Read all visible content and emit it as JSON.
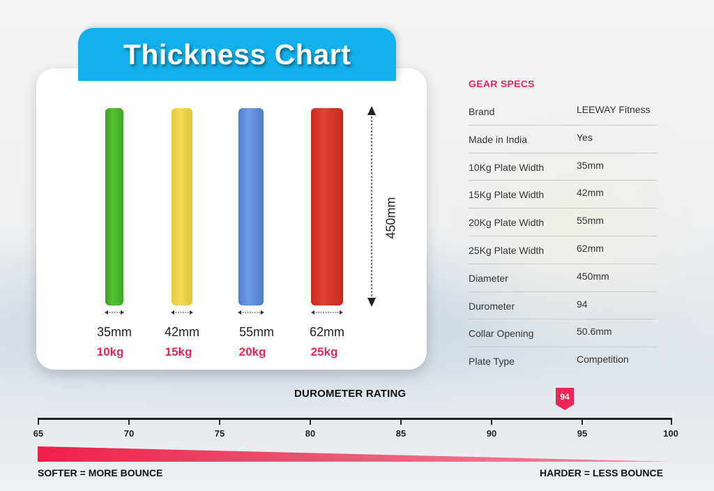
{
  "title": "Thickness Chart",
  "plates": [
    {
      "thickness": "35mm",
      "weight": "10kg",
      "color": "#4cb52c"
    },
    {
      "thickness": "42mm",
      "weight": "15kg",
      "color": "#f0d64f"
    },
    {
      "thickness": "55mm",
      "weight": "20kg",
      "color": "#5e8edb"
    },
    {
      "thickness": "62mm",
      "weight": "25kg",
      "color": "#d83a2d"
    }
  ],
  "diameter_label": "450mm",
  "specs": {
    "heading": "GEAR SPECS",
    "rows": [
      {
        "key": "Brand",
        "value": "LEEWAY Fitness"
      },
      {
        "key": "Made in India",
        "value": "Yes"
      },
      {
        "key": "10Kg Plate Width",
        "value": "35mm"
      },
      {
        "key": "15Kg Plate Width",
        "value": "42mm"
      },
      {
        "key": "20Kg Plate Width",
        "value": "55mm"
      },
      {
        "key": "25Kg Plate Width",
        "value": "62mm"
      },
      {
        "key": "Diameter",
        "value": "450mm"
      },
      {
        "key": "Durometer",
        "value": "94"
      },
      {
        "key": "Collar Opening",
        "value": "50.6mm"
      },
      {
        "key": "Plate Type",
        "value": "Competition"
      }
    ]
  },
  "durometer": {
    "title": "DUROMETER RATING",
    "ticks": [
      "65",
      "70",
      "75",
      "80",
      "85",
      "90",
      "95",
      "100"
    ],
    "marker": "94",
    "left_label": "SOFTER = MORE BOUNCE",
    "right_label": "HARDER = LESS BOUNCE"
  },
  "colors": {
    "accent": "#e8265a",
    "title_bg": "#12b0ec"
  }
}
